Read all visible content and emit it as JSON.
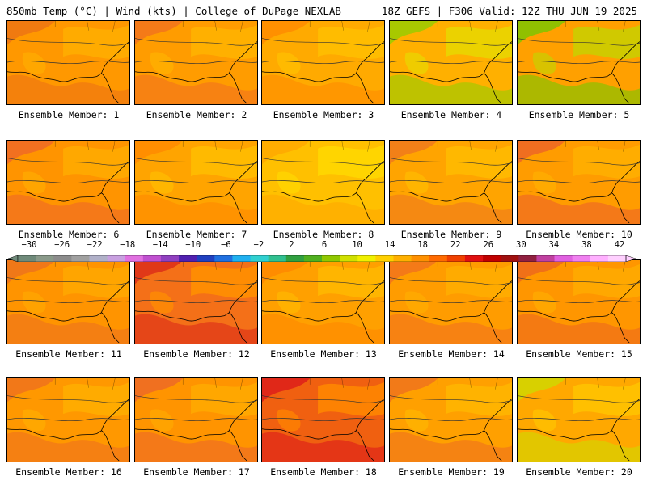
{
  "header": {
    "left": "850mb Temp (°C) | Wind (kts) | College of DuPage NEXLAB",
    "right": "18Z GEFS | F306 Valid: 12Z THU JUN 19 2025"
  },
  "panels": [
    {
      "label": "Ensemble Member: 1"
    },
    {
      "label": "Ensemble Member: 2"
    },
    {
      "label": "Ensemble Member: 3"
    },
    {
      "label": "Ensemble Member: 4"
    },
    {
      "label": "Ensemble Member: 5"
    },
    {
      "label": "Ensemble Member: 6"
    },
    {
      "label": "Ensemble Member: 7"
    },
    {
      "label": "Ensemble Member: 8"
    },
    {
      "label": "Ensemble Member: 9"
    },
    {
      "label": "Ensemble Member: 10"
    },
    {
      "label": "Ensemble Member: 11"
    },
    {
      "label": "Ensemble Member: 12"
    },
    {
      "label": "Ensemble Member: 13"
    },
    {
      "label": "Ensemble Member: 14"
    },
    {
      "label": "Ensemble Member: 15"
    },
    {
      "label": "Ensemble Member: 16"
    },
    {
      "label": "Ensemble Member: 17"
    },
    {
      "label": "Ensemble Member: 18"
    },
    {
      "label": "Ensemble Member: 19"
    },
    {
      "label": "Ensemble Member: 20"
    }
  ],
  "colorbar": {
    "tick_labels": [
      "−30",
      "−26",
      "−22",
      "−18",
      "−14",
      "−10",
      "−6",
      "−2",
      "2",
      "6",
      "10",
      "14",
      "18",
      "22",
      "26",
      "30",
      "34",
      "38",
      "42"
    ],
    "colors": [
      "#6f8a7a",
      "#8a9a8a",
      "#8c8c8c",
      "#a0a0a0",
      "#b0b0c8",
      "#c8a0e0",
      "#e070e0",
      "#c050d0",
      "#9040c0",
      "#5020b0",
      "#2040c0",
      "#2070e0",
      "#20b0f0",
      "#30d0d0",
      "#30c090",
      "#30a040",
      "#50b020",
      "#90c800",
      "#d0e000",
      "#f0f000",
      "#ffd000",
      "#ffb000",
      "#ff9000",
      "#ff6a00",
      "#f04000",
      "#e01010",
      "#c00000",
      "#a01010",
      "#902040",
      "#c040a0",
      "#e060e0",
      "#f080f0",
      "#ffb0ff",
      "#ffd0ff"
    ]
  }
}
